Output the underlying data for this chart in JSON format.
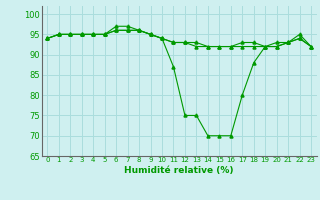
{
  "xlabel": "Humidité relative (%)",
  "bg_color": "#cff0f0",
  "grid_color": "#aadddd",
  "line_color": "#009900",
  "spine_color": "#666666",
  "xlim": [
    -0.5,
    23.5
  ],
  "ylim": [
    65,
    102
  ],
  "yticks": [
    65,
    70,
    75,
    80,
    85,
    90,
    95,
    100
  ],
  "xticks": [
    0,
    1,
    2,
    3,
    4,
    5,
    6,
    7,
    8,
    9,
    10,
    11,
    12,
    13,
    14,
    15,
    16,
    17,
    18,
    19,
    20,
    21,
    22,
    23
  ],
  "series": [
    [
      94,
      95,
      95,
      95,
      95,
      95,
      97,
      97,
      96,
      95,
      94,
      87,
      75,
      75,
      70,
      70,
      70,
      80,
      88,
      92,
      93,
      93,
      95,
      92
    ],
    [
      94,
      95,
      95,
      95,
      95,
      95,
      96,
      96,
      96,
      95,
      94,
      93,
      93,
      93,
      92,
      92,
      92,
      93,
      93,
      92,
      92,
      93,
      94,
      92
    ],
    [
      94,
      95,
      95,
      95,
      95,
      95,
      96,
      96,
      96,
      95,
      94,
      93,
      93,
      92,
      92,
      92,
      92,
      92,
      92,
      92,
      92,
      93,
      94,
      92
    ]
  ]
}
